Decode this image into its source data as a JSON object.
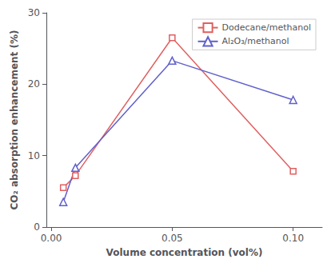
{
  "chart_data": {
    "type": "line",
    "x": [
      0.005,
      0.01,
      0.05,
      0.1
    ],
    "series": [
      {
        "name": "Dodecane/methanol",
        "color": "#e06060",
        "marker": "square",
        "values": [
          5.5,
          7.2,
          26.5,
          7.8
        ]
      },
      {
        "name": "Al₂O₃/methanol",
        "color": "#6060cc",
        "marker": "triangle",
        "values": [
          3.5,
          8.3,
          23.3,
          17.8
        ]
      }
    ],
    "xlabel": "Volume concentration (vol%)",
    "ylabel": "CO₂ absorption enhancement (%)",
    "xlim": [
      -0.002,
      0.112
    ],
    "ylim": [
      0,
      30
    ],
    "xticks": [
      {
        "value": 0,
        "label": "0.00"
      },
      0.05,
      {
        "value": 0.1,
        "label": "0.10"
      }
    ],
    "yticks": [
      0,
      10,
      20,
      30
    ],
    "grid": false,
    "legend": "upper right"
  }
}
